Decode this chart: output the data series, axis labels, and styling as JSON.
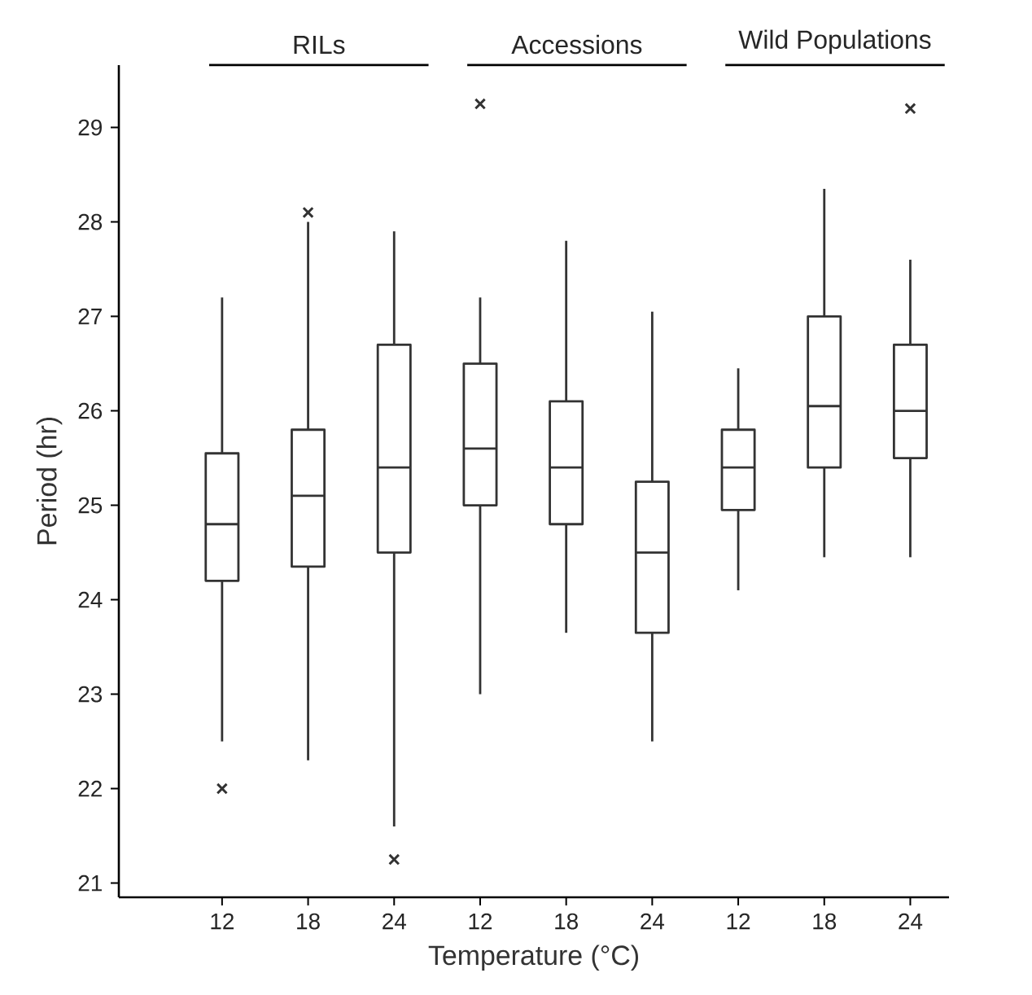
{
  "chart_data": {
    "type": "box",
    "xlabel": "Temperature (°C)",
    "ylabel": "Period (hr)",
    "categories": [
      "12",
      "18",
      "24",
      "12",
      "18",
      "24",
      "12",
      "18",
      "24"
    ],
    "annotations": [
      "RILs",
      "Accessions",
      "Wild Populations"
    ],
    "ylim": [
      20.85,
      29.66
    ],
    "yticks": [
      21,
      22,
      23,
      24,
      25,
      26,
      27,
      28,
      29
    ],
    "marker": "cross",
    "grid": false,
    "series": [
      {
        "color": "#333333",
        "boxes": [
          {
            "low": 22.5,
            "q1": 24.2,
            "median": 24.8,
            "q3": 25.55,
            "high": 27.2,
            "outliers": [
              22.0
            ]
          },
          {
            "low": 22.3,
            "q1": 24.35,
            "median": 25.1,
            "q3": 25.8,
            "high": 28.0,
            "outliers": [
              28.1
            ]
          },
          {
            "low": 21.6,
            "q1": 24.5,
            "median": 25.4,
            "q3": 26.7,
            "high": 27.9,
            "outliers": [
              21.25
            ]
          },
          {
            "low": 23.0,
            "q1": 25.0,
            "median": 25.6,
            "q3": 26.5,
            "high": 27.2,
            "outliers": [
              29.25
            ]
          },
          {
            "low": 23.65,
            "q1": 24.8,
            "median": 25.4,
            "q3": 26.1,
            "high": 27.8
          },
          {
            "low": 22.5,
            "q1": 23.65,
            "median": 24.5,
            "q3": 25.25,
            "high": 27.05
          },
          {
            "low": 24.1,
            "q1": 24.95,
            "median": 25.4,
            "q3": 25.8,
            "high": 26.45
          },
          {
            "low": 24.45,
            "q1": 25.4,
            "median": 26.05,
            "q3": 27.0,
            "high": 28.35
          },
          {
            "low": 24.45,
            "q1": 25.5,
            "median": 26.0,
            "q3": 26.7,
            "high": 27.6,
            "outliers": [
              29.2
            ]
          }
        ]
      }
    ]
  }
}
